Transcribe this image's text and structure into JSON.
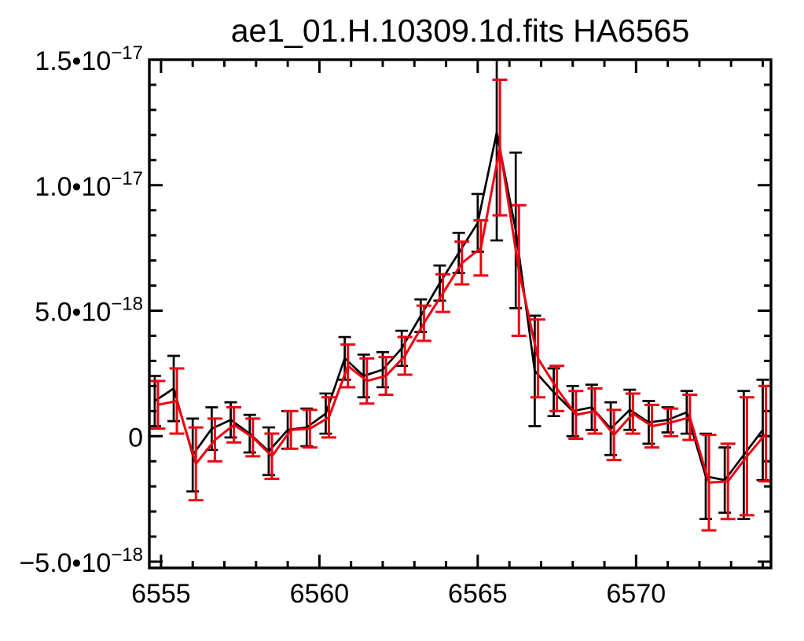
{
  "title": "ae1_01.H.10309.1d.fits HA6565",
  "chart_data": {
    "type": "line",
    "title": "ae1_01.H.10309.1d.fits HA6565",
    "xlabel": "",
    "ylabel": "",
    "grid": false,
    "legend": "none",
    "value_scale": 1e-18,
    "xlim": [
      6554.63,
      6574.26
    ],
    "ylim": [
      -5.25,
      15.0
    ],
    "x_ticks": [
      {
        "value": 6555,
        "label": "6555"
      },
      {
        "value": 6560,
        "label": "6560"
      },
      {
        "value": 6565,
        "label": "6565"
      },
      {
        "value": 6570,
        "label": "6570"
      }
    ],
    "x_minor_step": 1,
    "y_ticks": [
      {
        "value": 15,
        "coef": "1.5",
        "exp": "−17"
      },
      {
        "value": 10,
        "coef": "1.0",
        "exp": "−17"
      },
      {
        "value": 5,
        "coef": "5.0",
        "exp": "−18"
      },
      {
        "value": 0,
        "coef": "0",
        "exp": ""
      },
      {
        "value": -5,
        "coef": "−5.0",
        "exp": "−18"
      }
    ],
    "y_minor_step": 1,
    "multiply_dot": "•",
    "colors": {
      "background": "#ffffff",
      "frame": "#000000",
      "series1": "#000000",
      "series2": "#ee0011"
    },
    "red_x_offset": 0.1,
    "x": [
      6554.8,
      6555.4,
      6556.0,
      6556.6,
      6557.2,
      6557.8,
      6558.4,
      6559.0,
      6559.6,
      6560.2,
      6560.8,
      6561.4,
      6562.0,
      6562.6,
      6563.2,
      6563.8,
      6564.4,
      6565.0,
      6565.6,
      6566.2,
      6566.8,
      6567.4,
      6568.0,
      6568.6,
      6569.2,
      6569.8,
      6570.4,
      6571.0,
      6571.6,
      6572.2,
      6572.8,
      6573.4,
      6574.0
    ],
    "series": [
      {
        "name": "black-spectrum",
        "color": "#000000",
        "values": [
          1.4,
          1.9,
          -0.75,
          0.3,
          0.65,
          0.1,
          -0.6,
          0.25,
          0.35,
          0.9,
          3.1,
          2.4,
          2.65,
          3.5,
          4.8,
          6.1,
          7.3,
          8.5,
          12.1,
          8.2,
          2.6,
          1.75,
          1.0,
          1.15,
          0.3,
          1.05,
          0.55,
          0.65,
          0.95,
          -1.6,
          -1.75,
          -0.75,
          0.25
        ],
        "errors": [
          1.0,
          1.3,
          1.45,
          0.85,
          0.7,
          0.75,
          0.95,
          0.75,
          0.75,
          0.8,
          0.85,
          0.85,
          0.7,
          0.7,
          0.65,
          0.7,
          0.8,
          1.15,
          4.3,
          3.1,
          2.2,
          0.95,
          1.0,
          0.9,
          1.05,
          0.8,
          0.85,
          0.5,
          0.85,
          1.7,
          1.3,
          2.55,
          2.0
        ]
      },
      {
        "name": "red-spectrum",
        "color": "#ee0011",
        "values": [
          1.25,
          1.4,
          -1.1,
          -0.15,
          0.45,
          -0.05,
          -0.8,
          0.25,
          0.3,
          0.75,
          2.8,
          2.2,
          2.4,
          3.2,
          4.5,
          5.7,
          6.9,
          7.5,
          11.5,
          6.6,
          3.1,
          1.9,
          0.85,
          1.0,
          0.05,
          0.9,
          0.4,
          0.55,
          0.75,
          -1.85,
          -1.8,
          -0.8,
          0.1
        ],
        "errors": [
          0.95,
          1.3,
          1.45,
          0.85,
          0.7,
          0.75,
          0.9,
          0.75,
          0.75,
          0.8,
          0.85,
          0.9,
          0.75,
          0.75,
          0.7,
          0.75,
          0.85,
          1.1,
          2.7,
          2.6,
          1.55,
          0.9,
          0.95,
          0.9,
          1.0,
          0.8,
          0.85,
          0.55,
          0.9,
          1.9,
          1.5,
          2.35,
          1.9
        ]
      }
    ]
  }
}
